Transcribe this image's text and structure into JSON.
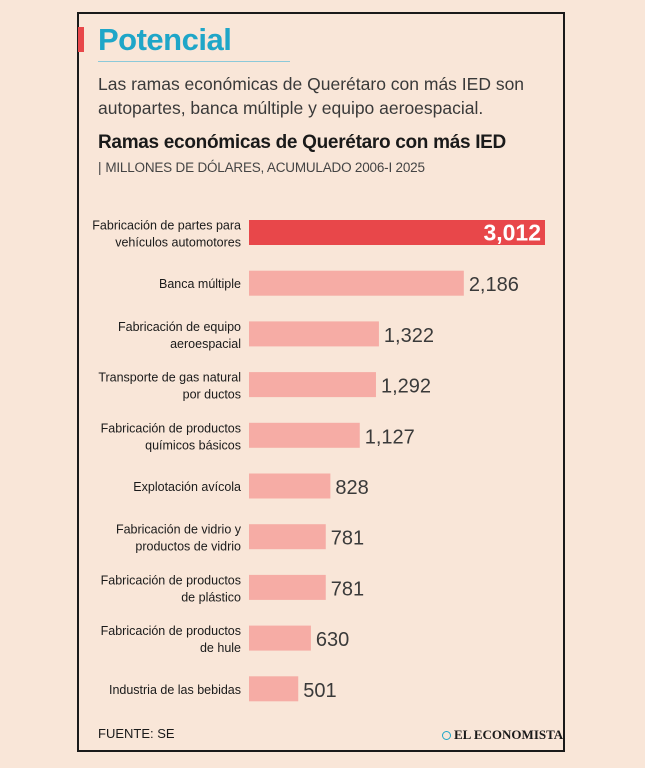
{
  "header": {
    "title": "Potencial",
    "subtitle": "Las ramas económicas de Querétaro con más IED son autopartes, banca múltiple y equipo aeroespacial."
  },
  "colors": {
    "accent": "#e8474a",
    "bar": "#f6aca5",
    "title": "#1fa6c8"
  },
  "chart_data": {
    "type": "bar",
    "orientation": "horizontal",
    "title": "Ramas económicas de Querétaro con más IED",
    "subtitle_pipe": "|",
    "subtitle": "MILLONES DE DÓLARES, ACUMULADO 2006-I 2025",
    "categories": [
      [
        "Fabricación de partes para",
        "vehículos automotores"
      ],
      [
        "Banca múltiple"
      ],
      [
        "Fabricación de equipo",
        "aeroespacial"
      ],
      [
        "Transporte de gas natural",
        "por ductos"
      ],
      [
        "Fabricación de productos",
        "químicos básicos"
      ],
      [
        "Explotación avícola"
      ],
      [
        "Fabricación de vidrio y",
        "productos de vidrio"
      ],
      [
        "Fabricación de productos",
        "de plástico"
      ],
      [
        "Fabricación de productos",
        "de hule"
      ],
      [
        "Industria de las bebidas"
      ]
    ],
    "values": [
      3012,
      2186,
      1322,
      1292,
      1127,
      828,
      781,
      781,
      630,
      501
    ],
    "labels": [
      "3,012",
      "2,186",
      "1,322",
      "1,292",
      "1,127",
      "828",
      "781",
      "781",
      "630",
      "501"
    ],
    "highlight_index": 0,
    "xlim": [
      0,
      3012
    ]
  },
  "footer": {
    "source": "FUENTE: SE",
    "brand": "EL ECONOMISTA"
  }
}
